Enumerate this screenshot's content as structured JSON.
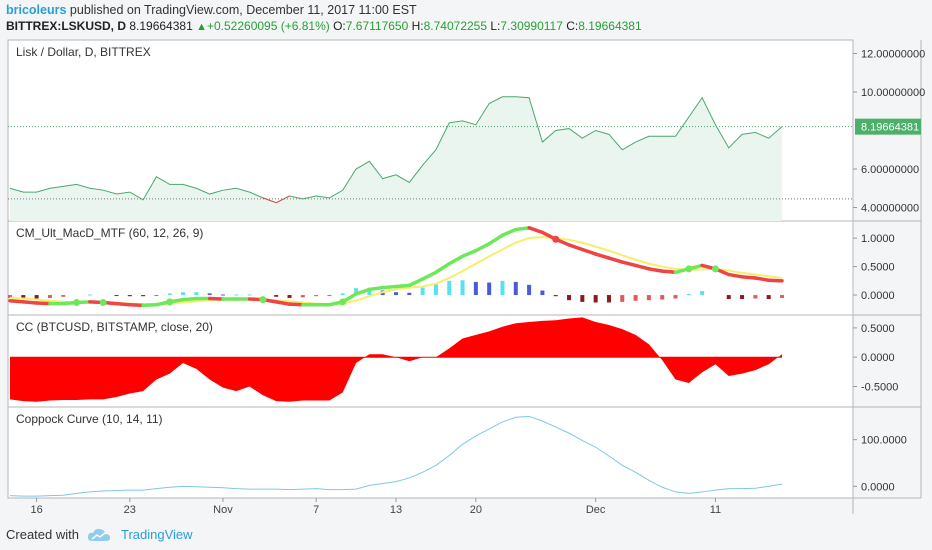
{
  "header": {
    "user": "bricoleurs",
    "published": "published on TradingView.com, December 11, 2017 11:00 EST",
    "symbol": "BITTREX:LSKUSD, D",
    "last": "8.19664381",
    "change": "+0.52260095 (+6.81%)",
    "o_label": "O:",
    "o": "7.67117650",
    "h_label": "H:",
    "h": "8.74072255",
    "l_label": "L:",
    "l": "7.30990117",
    "c_label": "C:",
    "c": "8.19664381"
  },
  "colors": {
    "price_line": "#49a86e",
    "price_fill": "#e9f5ee",
    "last_badge": "#4caf6a",
    "macd_green": "#6ee85a",
    "macd_red": "#ee4444",
    "signal": "#f5ef6a",
    "cc_fill": "#ff0000",
    "coppock": "#7fc7e6"
  },
  "footer": {
    "created": "Created with",
    "brand": "TradingView"
  },
  "chart_data": [
    {
      "type": "area",
      "title": "Lisk / Dollar, D, BITTREX",
      "ylim": [
        3.3,
        12.7
      ],
      "yticks": [
        "12.00000000",
        "10.00000000",
        "6.00000000",
        "4.00000000"
      ],
      "ytick_values": [
        12,
        10,
        6,
        4
      ],
      "last_label": "8.19664381",
      "last_value": 8.2,
      "dotted_low": 4.45,
      "y": [
        5.0,
        4.8,
        4.8,
        5.0,
        5.1,
        5.2,
        5.0,
        4.9,
        4.7,
        4.8,
        4.4,
        5.6,
        5.2,
        5.2,
        5.0,
        4.7,
        4.9,
        5.0,
        4.8,
        4.5,
        4.25,
        4.6,
        4.45,
        4.6,
        4.5,
        4.9,
        6.0,
        6.4,
        5.5,
        5.7,
        5.3,
        6.2,
        7.0,
        8.4,
        8.5,
        8.3,
        9.4,
        9.75,
        9.75,
        9.7,
        7.4,
        8.0,
        8.1,
        7.6,
        8.0,
        7.8,
        7.0,
        7.4,
        7.7,
        7.7,
        7.7,
        8.7,
        9.7,
        8.3,
        7.1,
        7.8,
        7.9,
        7.6,
        8.2
      ]
    },
    {
      "type": "line",
      "title": "CM_Ult_MacD_MTF (60, 12, 26, 9)",
      "ylim": [
        -0.35,
        1.3
      ],
      "yticks": [
        "1.0000",
        "0.5000",
        "0.0000"
      ],
      "ytick_values": [
        1,
        0.5,
        0
      ],
      "series": [
        {
          "values": [
            -0.1,
            -0.12,
            -0.14,
            -0.15,
            -0.15,
            -0.13,
            -0.12,
            -0.13,
            -0.15,
            -0.17,
            -0.18,
            -0.17,
            -0.12,
            -0.08,
            -0.06,
            -0.06,
            -0.07,
            -0.07,
            -0.07,
            -0.08,
            -0.12,
            -0.16,
            -0.17,
            -0.17,
            -0.17,
            -0.12,
            0.02,
            0.1,
            0.13,
            0.15,
            0.17,
            0.28,
            0.4,
            0.55,
            0.68,
            0.78,
            0.9,
            1.05,
            1.15,
            1.18,
            1.1,
            0.98,
            0.88,
            0.8,
            0.72,
            0.65,
            0.58,
            0.52,
            0.46,
            0.42,
            0.4,
            0.46,
            0.52,
            0.46,
            0.36,
            0.32,
            0.3,
            0.26,
            0.25
          ]
        },
        {
          "values": [
            -0.05,
            -0.06,
            -0.08,
            -0.1,
            -0.12,
            -0.13,
            -0.13,
            -0.13,
            -0.14,
            -0.15,
            -0.16,
            -0.16,
            -0.15,
            -0.13,
            -0.11,
            -0.09,
            -0.08,
            -0.08,
            -0.08,
            -0.08,
            -0.09,
            -0.11,
            -0.13,
            -0.15,
            -0.16,
            -0.15,
            -0.1,
            -0.02,
            0.05,
            0.1,
            0.13,
            0.15,
            0.2,
            0.3,
            0.42,
            0.55,
            0.68,
            0.8,
            0.92,
            1.0,
            1.02,
            1.0,
            0.97,
            0.92,
            0.85,
            0.78,
            0.7,
            0.62,
            0.55,
            0.5,
            0.46,
            0.44,
            0.45,
            0.46,
            0.43,
            0.39,
            0.36,
            0.33,
            0.3
          ]
        }
      ],
      "histogram": [
        -0.05,
        -0.06,
        -0.06,
        -0.05,
        -0.03,
        0,
        0.01,
        0,
        -0.01,
        -0.02,
        -0.02,
        -0.01,
        0.03,
        0.05,
        0.05,
        0.03,
        0.01,
        0.01,
        0.01,
        0,
        -0.03,
        -0.05,
        -0.04,
        -0.02,
        -0.01,
        0.03,
        0.12,
        0.12,
        0.08,
        0.05,
        0.04,
        0.13,
        0.2,
        0.25,
        0.26,
        0.23,
        0.22,
        0.25,
        0.23,
        0.18,
        0.08,
        -0.02,
        -0.09,
        -0.12,
        -0.13,
        -0.13,
        -0.12,
        -0.1,
        -0.09,
        -0.08,
        -0.06,
        0.02,
        0.07,
        0,
        -0.07,
        -0.07,
        -0.06,
        -0.07,
        -0.05
      ]
    },
    {
      "type": "area",
      "title": "CC (BTCUSD, BITSTAMP, close, 20)",
      "ylim": [
        -0.85,
        0.72
      ],
      "yticks": [
        "0.5000",
        "0.0000",
        "-0.5000"
      ],
      "ytick_values": [
        0.5,
        0,
        -0.5
      ],
      "y": [
        -0.72,
        -0.75,
        -0.76,
        -0.74,
        -0.73,
        -0.73,
        -0.72,
        -0.72,
        -0.68,
        -0.62,
        -0.58,
        -0.38,
        -0.28,
        -0.1,
        -0.2,
        -0.38,
        -0.52,
        -0.58,
        -0.5,
        -0.65,
        -0.75,
        -0.76,
        -0.74,
        -0.74,
        -0.74,
        -0.6,
        -0.1,
        0.05,
        0.05,
        0,
        -0.07,
        0,
        0,
        0.15,
        0.32,
        0.38,
        0.44,
        0.52,
        0.58,
        0.6,
        0.62,
        0.63,
        0.66,
        0.68,
        0.6,
        0.55,
        0.48,
        0.38,
        0.22,
        -0.05,
        -0.38,
        -0.44,
        -0.26,
        -0.12,
        -0.32,
        -0.28,
        -0.22,
        -0.12,
        0.05
      ]
    },
    {
      "type": "line",
      "title": "Coppock Curve (10, 14, 11)",
      "ylim": [
        -25,
        170
      ],
      "yticks": [
        "100.0000",
        "0.0000"
      ],
      "ytick_values": [
        100,
        0
      ],
      "y": [
        -20,
        -21,
        -21,
        -20,
        -19,
        -15,
        -12,
        -10,
        -9,
        -8,
        -8,
        -5,
        -2,
        0,
        -1,
        -2,
        -3,
        -5,
        -6,
        -6,
        -6,
        -7,
        -6,
        -5,
        -7,
        -7,
        -6,
        2,
        6,
        10,
        18,
        30,
        45,
        66,
        90,
        108,
        123,
        138,
        148,
        150,
        140,
        127,
        114,
        98,
        84,
        65,
        45,
        30,
        13,
        -2,
        -12,
        -15,
        -12,
        -8,
        -5,
        -5,
        -4,
        0,
        5
      ],
      "xticks": [
        "16",
        "23",
        "Nov",
        "7",
        "13",
        "20",
        "Dec",
        "11"
      ],
      "xtick_index": [
        2,
        9,
        16,
        23,
        29,
        35,
        44,
        53
      ]
    }
  ]
}
